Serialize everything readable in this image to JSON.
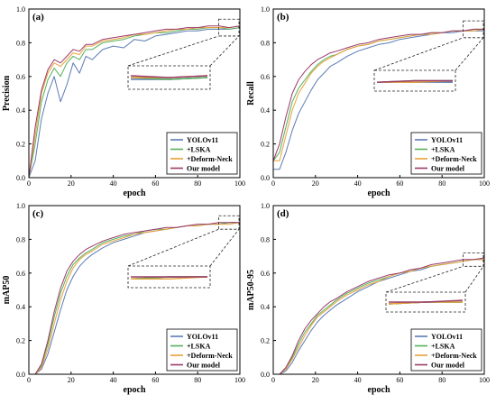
{
  "colors": {
    "YOLOv11": "#5b7bb5",
    "+LSKA": "#55b05a",
    "+Deform-Neck": "#e8a23a",
    "Our model": "#9a3a6a"
  },
  "chart_data": [
    {
      "type": "line",
      "panel_label": "(a)",
      "xlabel": "epoch",
      "ylabel": "Precision",
      "xlim": [
        0,
        100
      ],
      "ylim": [
        0,
        1.0
      ],
      "x_ticks": [
        "0",
        "20",
        "40",
        "60",
        "80",
        "100"
      ],
      "y_ticks": [
        "0.0",
        "0.2",
        "0.4",
        "0.6",
        "0.8",
        "1.0"
      ],
      "legend": "bottom-right",
      "inset": "zoomed view of epochs 90-100",
      "series": [
        {
          "name": "YOLOv11",
          "x": [
            0,
            3,
            6,
            9,
            12,
            15,
            18,
            21,
            24,
            27,
            30,
            35,
            40,
            45,
            50,
            55,
            60,
            65,
            70,
            75,
            80,
            85,
            90,
            95,
            100
          ],
          "y": [
            0,
            0.1,
            0.35,
            0.5,
            0.6,
            0.45,
            0.55,
            0.68,
            0.62,
            0.72,
            0.7,
            0.76,
            0.78,
            0.77,
            0.82,
            0.81,
            0.84,
            0.85,
            0.86,
            0.87,
            0.87,
            0.88,
            0.88,
            0.88,
            0.89
          ]
        },
        {
          "name": "+LSKA",
          "x": [
            0,
            3,
            6,
            9,
            12,
            15,
            18,
            21,
            24,
            27,
            30,
            35,
            40,
            45,
            50,
            55,
            60,
            65,
            70,
            75,
            80,
            85,
            90,
            95,
            100
          ],
          "y": [
            0,
            0.2,
            0.45,
            0.58,
            0.65,
            0.6,
            0.68,
            0.72,
            0.7,
            0.76,
            0.76,
            0.8,
            0.81,
            0.82,
            0.84,
            0.85,
            0.86,
            0.86,
            0.87,
            0.88,
            0.88,
            0.89,
            0.89,
            0.88,
            0.89
          ]
        },
        {
          "name": "+Deform-Neck",
          "x": [
            0,
            3,
            6,
            9,
            12,
            15,
            18,
            21,
            24,
            27,
            30,
            35,
            40,
            45,
            50,
            55,
            60,
            65,
            70,
            75,
            80,
            85,
            90,
            95,
            100
          ],
          "y": [
            0,
            0.25,
            0.5,
            0.62,
            0.68,
            0.66,
            0.7,
            0.74,
            0.73,
            0.78,
            0.78,
            0.81,
            0.82,
            0.83,
            0.85,
            0.85,
            0.86,
            0.87,
            0.88,
            0.88,
            0.89,
            0.89,
            0.89,
            0.89,
            0.9
          ]
        },
        {
          "name": "Our model",
          "x": [
            0,
            3,
            6,
            9,
            12,
            15,
            18,
            21,
            24,
            27,
            30,
            35,
            40,
            45,
            50,
            55,
            60,
            65,
            70,
            75,
            80,
            85,
            90,
            95,
            100
          ],
          "y": [
            0,
            0.3,
            0.52,
            0.64,
            0.7,
            0.68,
            0.72,
            0.76,
            0.75,
            0.79,
            0.79,
            0.82,
            0.83,
            0.84,
            0.85,
            0.86,
            0.87,
            0.88,
            0.88,
            0.89,
            0.89,
            0.9,
            0.9,
            0.89,
            0.9
          ]
        }
      ]
    },
    {
      "type": "line",
      "panel_label": "(b)",
      "xlabel": "epoch",
      "ylabel": "Recall",
      "xlim": [
        0,
        100
      ],
      "ylim": [
        0,
        1.0
      ],
      "x_ticks": [
        "0",
        "20",
        "40",
        "60",
        "80",
        "100"
      ],
      "y_ticks": [
        "0.0",
        "0.2",
        "0.4",
        "0.6",
        "0.8",
        "1.0"
      ],
      "legend": "bottom-right",
      "inset": "zoomed view of epochs 90-100",
      "series": [
        {
          "name": "YOLOv11",
          "x": [
            0,
            3,
            6,
            9,
            12,
            15,
            18,
            21,
            24,
            27,
            30,
            35,
            40,
            45,
            50,
            55,
            60,
            65,
            70,
            75,
            80,
            85,
            90,
            95,
            100
          ],
          "y": [
            0.05,
            0.05,
            0.15,
            0.28,
            0.38,
            0.45,
            0.52,
            0.58,
            0.62,
            0.66,
            0.68,
            0.72,
            0.75,
            0.77,
            0.79,
            0.8,
            0.82,
            0.83,
            0.84,
            0.85,
            0.86,
            0.86,
            0.87,
            0.87,
            0.87
          ]
        },
        {
          "name": "+LSKA",
          "x": [
            0,
            3,
            6,
            9,
            12,
            15,
            18,
            21,
            24,
            27,
            30,
            35,
            40,
            45,
            50,
            55,
            60,
            65,
            70,
            75,
            80,
            85,
            90,
            95,
            100
          ],
          "y": [
            0.1,
            0.15,
            0.3,
            0.45,
            0.53,
            0.58,
            0.63,
            0.67,
            0.7,
            0.72,
            0.73,
            0.76,
            0.78,
            0.79,
            0.81,
            0.82,
            0.83,
            0.84,
            0.85,
            0.86,
            0.86,
            0.87,
            0.87,
            0.88,
            0.88
          ]
        },
        {
          "name": "+Deform-Neck",
          "x": [
            0,
            3,
            6,
            9,
            12,
            15,
            18,
            21,
            24,
            27,
            30,
            35,
            40,
            45,
            50,
            55,
            60,
            65,
            70,
            75,
            80,
            85,
            90,
            95,
            100
          ],
          "y": [
            0.1,
            0.1,
            0.25,
            0.4,
            0.5,
            0.56,
            0.62,
            0.66,
            0.69,
            0.71,
            0.73,
            0.76,
            0.78,
            0.79,
            0.81,
            0.82,
            0.83,
            0.84,
            0.85,
            0.85,
            0.86,
            0.87,
            0.87,
            0.87,
            0.88
          ]
        },
        {
          "name": "Our model",
          "x": [
            0,
            3,
            6,
            9,
            12,
            15,
            18,
            21,
            24,
            27,
            30,
            35,
            40,
            45,
            50,
            55,
            60,
            65,
            70,
            75,
            80,
            85,
            90,
            95,
            100
          ],
          "y": [
            0.1,
            0.2,
            0.36,
            0.5,
            0.58,
            0.63,
            0.67,
            0.7,
            0.72,
            0.74,
            0.75,
            0.77,
            0.79,
            0.8,
            0.82,
            0.83,
            0.84,
            0.85,
            0.85,
            0.86,
            0.86,
            0.87,
            0.87,
            0.88,
            0.88
          ]
        }
      ]
    },
    {
      "type": "line",
      "panel_label": "(c)",
      "xlabel": "epoch",
      "ylabel": "mAP50",
      "xlim": [
        0,
        100
      ],
      "ylim": [
        0,
        1.0
      ],
      "x_ticks": [
        "0",
        "20",
        "40",
        "60",
        "80",
        "100"
      ],
      "y_ticks": [
        "0.0",
        "0.2",
        "0.4",
        "0.6",
        "0.8",
        "1.0"
      ],
      "legend": "bottom-right",
      "inset": "zoomed view of epochs 90-100",
      "series": [
        {
          "name": "YOLOv11",
          "x": [
            0,
            3,
            6,
            9,
            12,
            15,
            18,
            21,
            24,
            27,
            30,
            35,
            40,
            45,
            50,
            55,
            60,
            65,
            70,
            75,
            80,
            85,
            90,
            95,
            100
          ],
          "y": [
            0,
            0,
            0.03,
            0.12,
            0.25,
            0.38,
            0.5,
            0.58,
            0.64,
            0.68,
            0.71,
            0.75,
            0.78,
            0.8,
            0.82,
            0.84,
            0.85,
            0.86,
            0.87,
            0.88,
            0.88,
            0.89,
            0.89,
            0.9,
            0.9
          ]
        },
        {
          "name": "+LSKA",
          "x": [
            0,
            3,
            6,
            9,
            12,
            15,
            18,
            21,
            24,
            27,
            30,
            35,
            40,
            45,
            50,
            55,
            60,
            65,
            70,
            75,
            80,
            85,
            90,
            95,
            100
          ],
          "y": [
            0,
            0,
            0.05,
            0.18,
            0.34,
            0.48,
            0.58,
            0.65,
            0.69,
            0.72,
            0.74,
            0.78,
            0.8,
            0.82,
            0.83,
            0.85,
            0.86,
            0.86,
            0.87,
            0.88,
            0.88,
            0.89,
            0.89,
            0.9,
            0.9
          ]
        },
        {
          "name": "+Deform-Neck",
          "x": [
            0,
            3,
            6,
            9,
            12,
            15,
            18,
            21,
            24,
            27,
            30,
            35,
            40,
            45,
            50,
            55,
            60,
            65,
            70,
            75,
            80,
            85,
            90,
            95,
            100
          ],
          "y": [
            0,
            0,
            0.04,
            0.15,
            0.3,
            0.44,
            0.55,
            0.63,
            0.68,
            0.71,
            0.73,
            0.77,
            0.79,
            0.81,
            0.83,
            0.84,
            0.85,
            0.86,
            0.87,
            0.88,
            0.88,
            0.89,
            0.89,
            0.89,
            0.9
          ]
        },
        {
          "name": "Our model",
          "x": [
            0,
            3,
            6,
            9,
            12,
            15,
            18,
            21,
            24,
            27,
            30,
            35,
            40,
            45,
            50,
            55,
            60,
            65,
            70,
            75,
            80,
            85,
            90,
            95,
            100
          ],
          "y": [
            0,
            0,
            0.06,
            0.2,
            0.37,
            0.51,
            0.61,
            0.67,
            0.71,
            0.74,
            0.76,
            0.79,
            0.81,
            0.83,
            0.84,
            0.85,
            0.86,
            0.87,
            0.87,
            0.88,
            0.89,
            0.89,
            0.9,
            0.9,
            0.9
          ]
        }
      ]
    },
    {
      "type": "line",
      "panel_label": "(d)",
      "xlabel": "epoch",
      "ylabel": "mAP50-95",
      "xlim": [
        0,
        100
      ],
      "ylim": [
        0,
        1.0
      ],
      "x_ticks": [
        "0",
        "20",
        "40",
        "60",
        "80",
        "100"
      ],
      "y_ticks": [
        "0.0",
        "0.2",
        "0.4",
        "0.6",
        "0.8",
        "1.0"
      ],
      "legend": "bottom-right",
      "inset": "zoomed view of epochs 90-100",
      "series": [
        {
          "name": "YOLOv11",
          "x": [
            0,
            3,
            6,
            9,
            12,
            15,
            18,
            21,
            24,
            27,
            30,
            35,
            40,
            45,
            50,
            55,
            60,
            65,
            70,
            75,
            80,
            85,
            90,
            95,
            100
          ],
          "y": [
            0,
            0,
            0.02,
            0.07,
            0.14,
            0.2,
            0.26,
            0.31,
            0.35,
            0.38,
            0.41,
            0.45,
            0.49,
            0.52,
            0.55,
            0.57,
            0.59,
            0.61,
            0.62,
            0.64,
            0.65,
            0.66,
            0.67,
            0.68,
            0.68
          ]
        },
        {
          "name": "+LSKA",
          "x": [
            0,
            3,
            6,
            9,
            12,
            15,
            18,
            21,
            24,
            27,
            30,
            35,
            40,
            45,
            50,
            55,
            60,
            65,
            70,
            75,
            80,
            85,
            90,
            95,
            100
          ],
          "y": [
            0,
            0,
            0.03,
            0.1,
            0.18,
            0.25,
            0.3,
            0.35,
            0.38,
            0.41,
            0.44,
            0.48,
            0.51,
            0.54,
            0.56,
            0.58,
            0.6,
            0.61,
            0.63,
            0.64,
            0.65,
            0.66,
            0.67,
            0.68,
            0.68
          ]
        },
        {
          "name": "+Deform-Neck",
          "x": [
            0,
            3,
            6,
            9,
            12,
            15,
            18,
            21,
            24,
            27,
            30,
            35,
            40,
            45,
            50,
            55,
            60,
            65,
            70,
            75,
            80,
            85,
            90,
            95,
            100
          ],
          "y": [
            0,
            0,
            0.03,
            0.09,
            0.16,
            0.23,
            0.29,
            0.34,
            0.37,
            0.4,
            0.43,
            0.47,
            0.5,
            0.53,
            0.55,
            0.58,
            0.6,
            0.61,
            0.63,
            0.64,
            0.65,
            0.66,
            0.67,
            0.68,
            0.68
          ]
        },
        {
          "name": "Our model",
          "x": [
            0,
            3,
            6,
            9,
            12,
            15,
            18,
            21,
            24,
            27,
            30,
            35,
            40,
            45,
            50,
            55,
            60,
            65,
            70,
            75,
            80,
            85,
            90,
            95,
            100
          ],
          "y": [
            0,
            0,
            0.04,
            0.11,
            0.2,
            0.27,
            0.32,
            0.36,
            0.4,
            0.43,
            0.45,
            0.49,
            0.52,
            0.55,
            0.57,
            0.59,
            0.6,
            0.62,
            0.63,
            0.65,
            0.66,
            0.67,
            0.68,
            0.68,
            0.69
          ]
        }
      ]
    }
  ]
}
